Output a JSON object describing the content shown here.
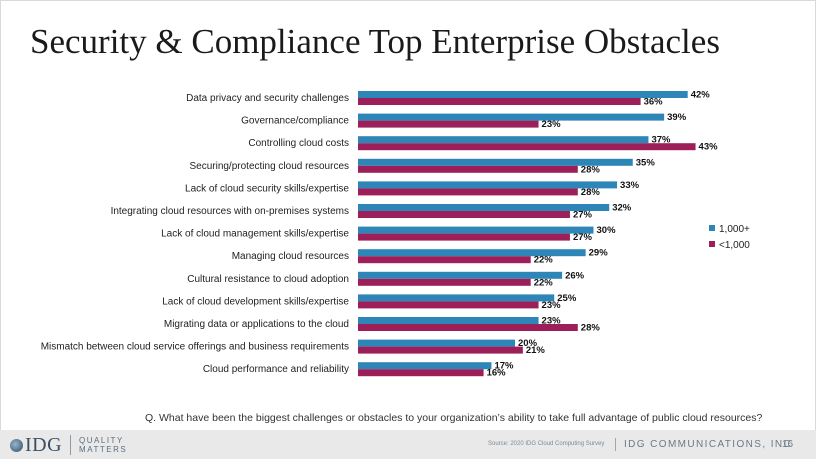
{
  "title": "Security & Compliance Top Enterprise Obstacles",
  "question": "Q. What have been the biggest challenges or obstacles to your organization’s ability to take full advantage of public cloud resources?",
  "footer": {
    "logo_text": "IDG",
    "tagline_1": "QUALITY",
    "tagline_2": "MATTERS",
    "source": "Source: 2020 IDG Cloud Computing Survey",
    "company": "IDG COMMUNICATIONS, INC",
    "page_number": "16"
  },
  "colors": {
    "series_1": "#2e86b8",
    "series_2": "#9c1f5a"
  },
  "chart_data": {
    "type": "bar",
    "orientation": "horizontal",
    "title": "Security & Compliance Top Enterprise Obstacles",
    "xlabel": "",
    "ylabel": "",
    "xlim": [
      0,
      45
    ],
    "value_suffix": "%",
    "legend_position": "right",
    "categories": [
      "Data privacy and security challenges",
      "Governance/compliance",
      "Controlling cloud costs",
      "Securing/protecting cloud resources",
      "Lack of cloud security skills/expertise",
      "Integrating cloud resources with on-premises systems",
      "Lack of cloud management skills/expertise",
      "Managing cloud resources",
      "Cultural resistance to cloud adoption",
      "Lack of cloud development skills/expertise",
      "Migrating data or applications to the cloud",
      "Mismatch between cloud service offerings and business requirements",
      "Cloud performance and reliability"
    ],
    "series": [
      {
        "name": "1,000+",
        "values": [
          42,
          39,
          37,
          35,
          33,
          32,
          30,
          29,
          26,
          25,
          23,
          20,
          17
        ]
      },
      {
        "name": "<1,000",
        "values": [
          36,
          23,
          43,
          28,
          28,
          27,
          27,
          22,
          22,
          23,
          28,
          21,
          16
        ]
      }
    ]
  }
}
